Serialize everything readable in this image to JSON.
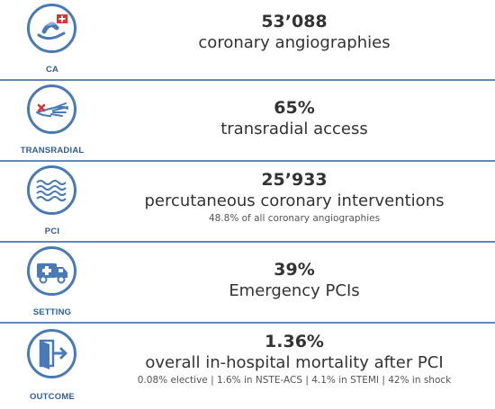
{
  "rows": [
    {
      "icon": "hospital-flag-icon",
      "label": "CA",
      "value": "53’088",
      "desc": "coronary angiographies",
      "note": ""
    },
    {
      "icon": "hand-wrist-icon",
      "label": "TRANSRADIAL",
      "value": "65%",
      "desc": "transradial access",
      "note": ""
    },
    {
      "icon": "stent-icon",
      "label": "PCI",
      "value": "25’933",
      "desc": "percutaneous coronary interventions",
      "note": "48.8% of all coronary angiographies"
    },
    {
      "icon": "ambulance-icon",
      "label": "SETTING",
      "value": "39%",
      "desc": "Emergency PCIs",
      "note": ""
    },
    {
      "icon": "exit-door-icon",
      "label": "OUTCOME",
      "value": "1.36%",
      "desc": "overall in-hospital mortality after PCI",
      "note": "0.08% elective | 1.6% in NSTE-ACS  | 4.1% in STEMI | 42% in shock"
    }
  ],
  "colors": {
    "accent": "#4a7ab5",
    "label": "#2f5d9b",
    "divider": "#5b87c2",
    "flag_red": "#e03030"
  }
}
